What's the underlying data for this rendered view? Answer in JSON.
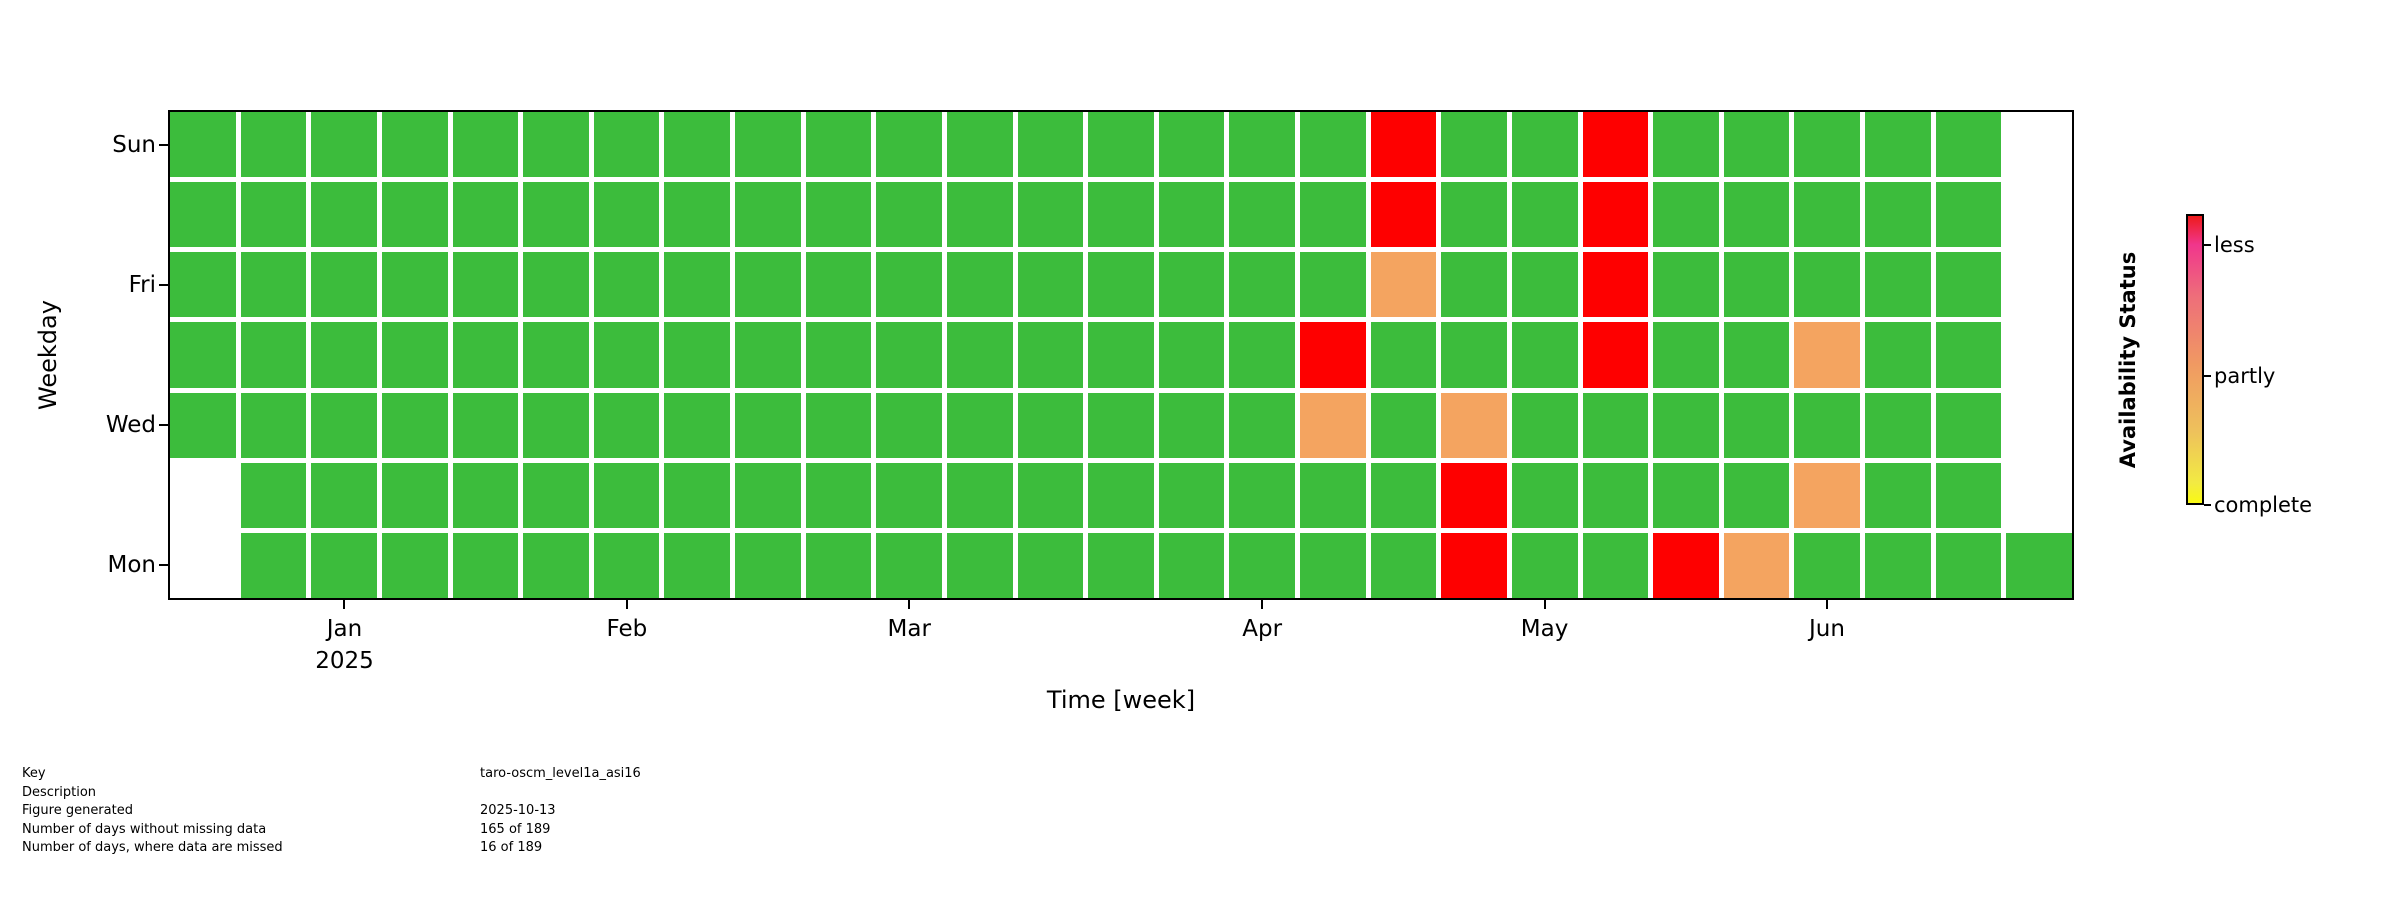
{
  "chart_data": {
    "type": "heatmap",
    "title": "",
    "xlabel": "Time [week]",
    "ylabel": "Weekday",
    "rows": [
      "Sun",
      "Sat",
      "Fri",
      "Thu",
      "Wed",
      "Tue",
      "Mon"
    ],
    "n_weeks": 27,
    "year": "2025",
    "y_tick_labels": [
      {
        "label": "Sun",
        "row": 0
      },
      {
        "label": "Fri",
        "row": 2
      },
      {
        "label": "Wed",
        "row": 4
      },
      {
        "label": "Mon",
        "row": 6
      }
    ],
    "x_ticks": [
      {
        "label": "Jan",
        "sublabel": "2025",
        "col": 2
      },
      {
        "label": "Feb",
        "col": 6
      },
      {
        "label": "Mar",
        "col": 10
      },
      {
        "label": "Apr",
        "col": 15
      },
      {
        "label": "May",
        "col": 19
      },
      {
        "label": "Jun",
        "col": 23
      }
    ],
    "grid_legend": "G=complete(green), P=partly(orange), L=less(red), .=no data(white)",
    "grid": [
      "GGGGGGGGGGGGGGGGGLGGLGGGGG.",
      "GGGGGGGGGGGGGGGGGLGGLGGGGG.",
      "GGGGGGGGGGGGGGGGGPGGLGGGGG.",
      "GGGGGGGGGGGGGGGGLGGGLGGPGG.",
      "GGGGGGGGGGGGGGGGPGPGGGGGGG.",
      ".GGGGGGGGGGGGGGGGGLGGGGPGG.",
      ".GGGGGGGGGGGGGGGGGLGGLPGGGG"
    ],
    "cell_colors": {
      "G": "#3cbc3c",
      "L": "#fe0000",
      "P": "#f4a460",
      ".": "transparent"
    },
    "colorbar_gradient": [
      "#ee1b1b 0%",
      "#f0368c 10%",
      "#ee6e7a 28%",
      "#f09a62 52%",
      "#eec15c 75%",
      "#f2ea43 93%",
      "#f9f913 100%"
    ],
    "legend": {
      "title": "Availability Status",
      "entries": [
        {
          "label": "less",
          "pos": 0.105
        },
        {
          "label": "partly",
          "pos": 0.555
        },
        {
          "label": "complete",
          "pos": 1.0
        }
      ]
    }
  },
  "footer": {
    "rows": [
      {
        "label": "Key",
        "value": "taro-oscm_level1a_asi16"
      },
      {
        "label": "Description",
        "value": ""
      },
      {
        "label": "Figure generated",
        "value": "2025-10-13"
      },
      {
        "label": "Number of days without missing data",
        "value": "165 of 189"
      },
      {
        "label": "Number of days, where data are missed",
        "value": "16 of 189"
      }
    ]
  }
}
